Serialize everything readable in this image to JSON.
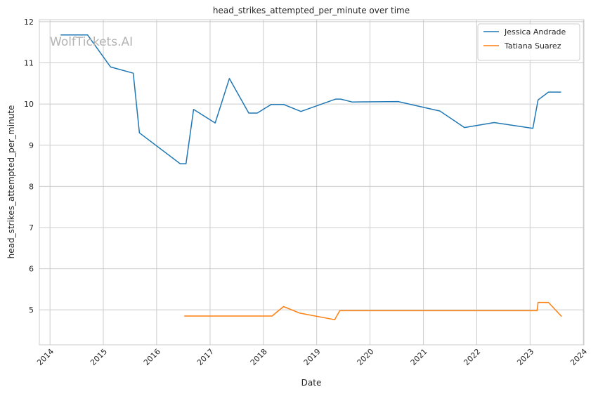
{
  "watermark": "WolfTickets.AI",
  "chart_data": {
    "type": "line",
    "title": "head_strikes_attempted_per_minute over time",
    "xlabel": "Date",
    "ylabel": "head_strikes_attempted_per_minute",
    "x_type": "date",
    "xlim": [
      "2013-10-20",
      "2024-01-05"
    ],
    "ylim": [
      4.15,
      12.05
    ],
    "x_ticks": [
      {
        "date": "2014-01-01",
        "label": "2014"
      },
      {
        "date": "2015-01-01",
        "label": "2015"
      },
      {
        "date": "2016-01-01",
        "label": "2016"
      },
      {
        "date": "2017-01-01",
        "label": "2017"
      },
      {
        "date": "2018-01-01",
        "label": "2018"
      },
      {
        "date": "2019-01-01",
        "label": "2019"
      },
      {
        "date": "2020-01-01",
        "label": "2020"
      },
      {
        "date": "2021-01-01",
        "label": "2021"
      },
      {
        "date": "2022-01-01",
        "label": "2022"
      },
      {
        "date": "2023-01-01",
        "label": "2023"
      },
      {
        "date": "2024-01-01",
        "label": "2024"
      }
    ],
    "y_ticks": [
      5,
      6,
      7,
      8,
      9,
      10,
      11,
      12
    ],
    "grid": true,
    "legend_position": "top-right",
    "series": [
      {
        "name": "Jessica Andrade",
        "color": "#1f77b4",
        "points": [
          {
            "x": "2014-03-15",
            "y": 11.68
          },
          {
            "x": "2014-09-15",
            "y": 11.68
          },
          {
            "x": "2015-02-20",
            "y": 10.9
          },
          {
            "x": "2015-07-25",
            "y": 10.75
          },
          {
            "x": "2015-09-05",
            "y": 9.3
          },
          {
            "x": "2016-06-10",
            "y": 8.55
          },
          {
            "x": "2016-07-20",
            "y": 8.55
          },
          {
            "x": "2016-09-10",
            "y": 9.87
          },
          {
            "x": "2017-02-05",
            "y": 9.54
          },
          {
            "x": "2017-05-13",
            "y": 10.62
          },
          {
            "x": "2017-09-23",
            "y": 9.78
          },
          {
            "x": "2017-11-20",
            "y": 9.78
          },
          {
            "x": "2018-02-24",
            "y": 9.99
          },
          {
            "x": "2018-05-19",
            "y": 9.99
          },
          {
            "x": "2018-09-15",
            "y": 9.82
          },
          {
            "x": "2019-05-11",
            "y": 10.12
          },
          {
            "x": "2019-06-15",
            "y": 10.12
          },
          {
            "x": "2019-08-31",
            "y": 10.05
          },
          {
            "x": "2020-07-12",
            "y": 10.06
          },
          {
            "x": "2021-04-24",
            "y": 9.83
          },
          {
            "x": "2021-10-09",
            "y": 9.43
          },
          {
            "x": "2022-04-30",
            "y": 9.55
          },
          {
            "x": "2023-01-20",
            "y": 9.41
          },
          {
            "x": "2023-02-25",
            "y": 10.1
          },
          {
            "x": "2023-05-07",
            "y": 10.29
          },
          {
            "x": "2023-08-01",
            "y": 10.29
          }
        ]
      },
      {
        "name": "Tatiana Suarez",
        "color": "#ff7f0e",
        "points": [
          {
            "x": "2016-07-08",
            "y": 4.85
          },
          {
            "x": "2018-03-01",
            "y": 4.85
          },
          {
            "x": "2018-05-19",
            "y": 5.08
          },
          {
            "x": "2018-09-08",
            "y": 4.92
          },
          {
            "x": "2019-05-04",
            "y": 4.76
          },
          {
            "x": "2019-06-08",
            "y": 4.98
          },
          {
            "x": "2023-02-18",
            "y": 4.98
          },
          {
            "x": "2023-02-25",
            "y": 5.18
          },
          {
            "x": "2023-05-07",
            "y": 5.18
          },
          {
            "x": "2023-08-05",
            "y": 4.84
          }
        ]
      }
    ]
  }
}
